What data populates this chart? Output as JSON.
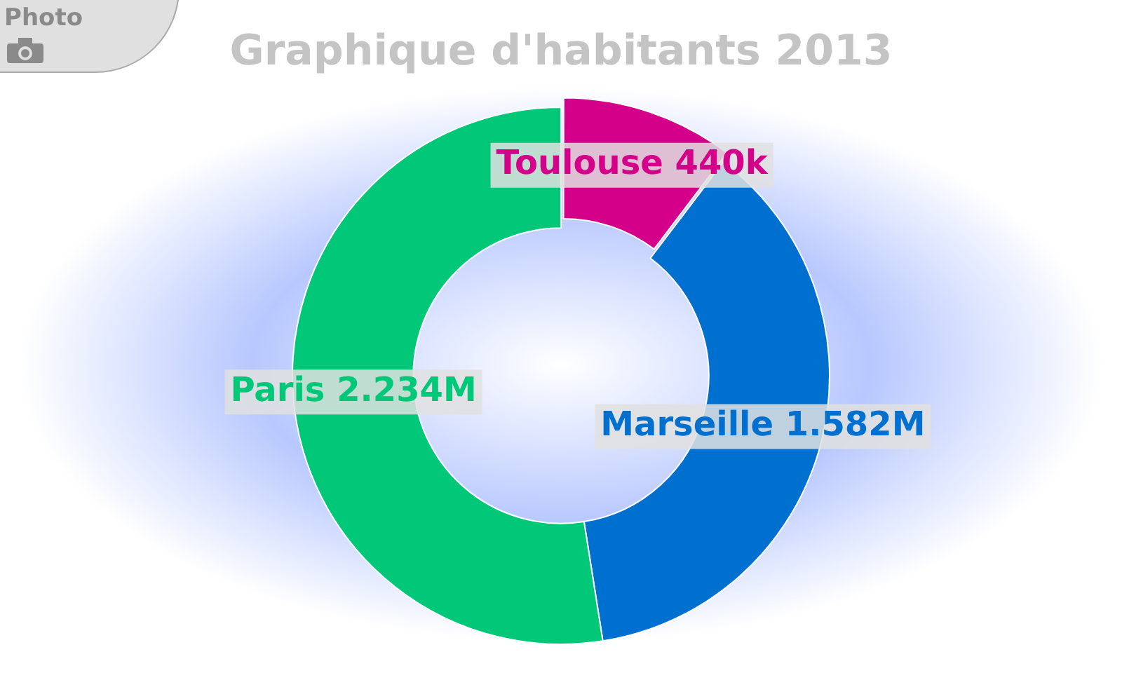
{
  "chart_data": {
    "type": "donut",
    "title": "Graphique d'habitants 2013",
    "categories": [
      "Toulouse",
      "Marseille",
      "Paris"
    ],
    "values": [
      440000,
      1582000,
      2234000
    ],
    "value_labels": [
      "440k",
      "1.582M",
      "2.234M"
    ],
    "colors": [
      "#d4008a",
      "#0070d0",
      "#00c878"
    ],
    "legend": false,
    "annotations": [
      "Photo"
    ]
  }
}
